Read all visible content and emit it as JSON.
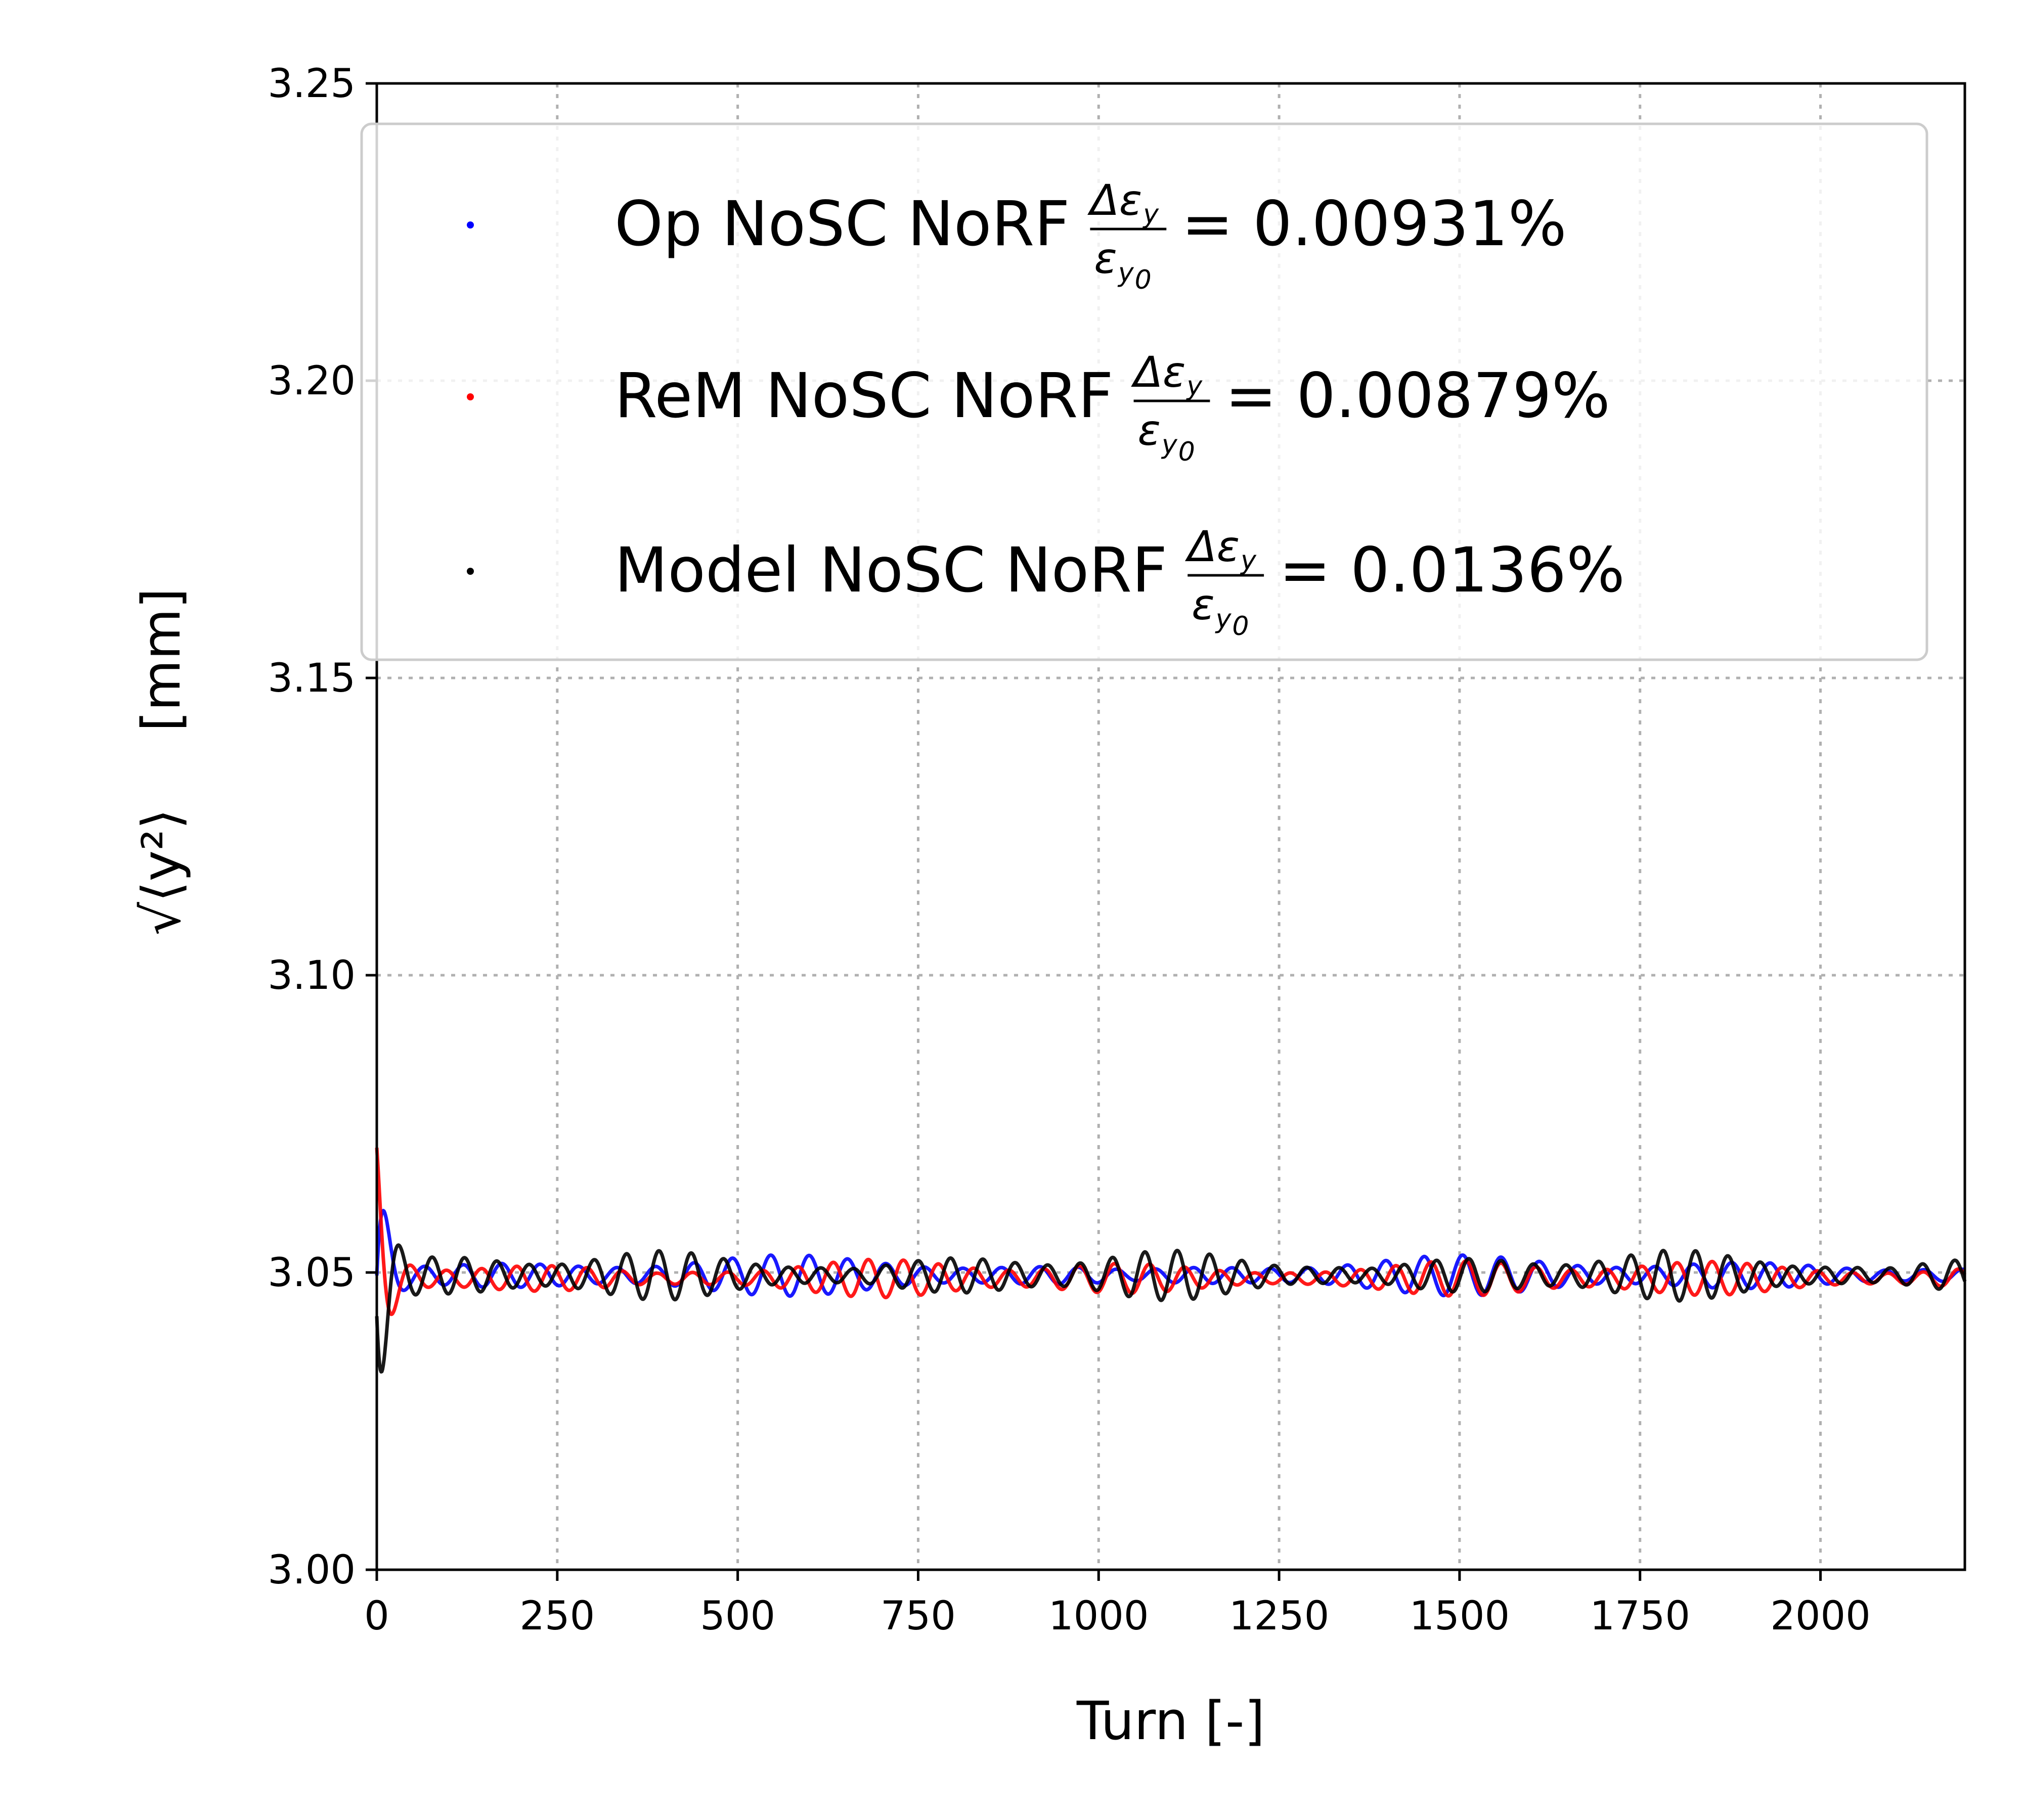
{
  "chart_data": {
    "type": "scatter",
    "xlabel": "Turn [-]",
    "ylabel": "[mm]",
    "ylabel_math": "√⟨y²⟩",
    "xlim": [
      0,
      2200
    ],
    "ylim": [
      3.0,
      3.25
    ],
    "x_ticks": [
      "0",
      "250",
      "500",
      "750",
      "1000",
      "1250",
      "1500",
      "1750",
      "2000"
    ],
    "y_ticks": [
      "3.00",
      "3.05",
      "3.10",
      "3.15",
      "3.20",
      "3.25"
    ],
    "grid": true,
    "legend_position": "top",
    "series": [
      {
        "name": "Op NoSC NoRF",
        "ratio_text": "= 0.00931%",
        "color": "#0000ff",
        "baseline": 3.0495,
        "initial_amplitude": 0.022,
        "steady_amplitude": 0.0035,
        "turns": 2200
      },
      {
        "name": "ReM NoSC NoRF",
        "ratio_text": "= 0.00879%",
        "color": "#ff0000",
        "baseline": 3.049,
        "initial_amplitude": 0.02,
        "steady_amplitude": 0.0035,
        "turns": 2200
      },
      {
        "name": "Model NoSC NoRF",
        "ratio_text": "= 0.0136%",
        "color": "#000000",
        "baseline": 3.0495,
        "initial_amplitude": 0.025,
        "steady_amplitude": 0.0045,
        "turns": 2200
      }
    ],
    "legend_fraction": {
      "numerator": "Δε",
      "num_sub": "y",
      "denominator": "ε",
      "den_sub": "y",
      "den_subsub": "0"
    }
  }
}
